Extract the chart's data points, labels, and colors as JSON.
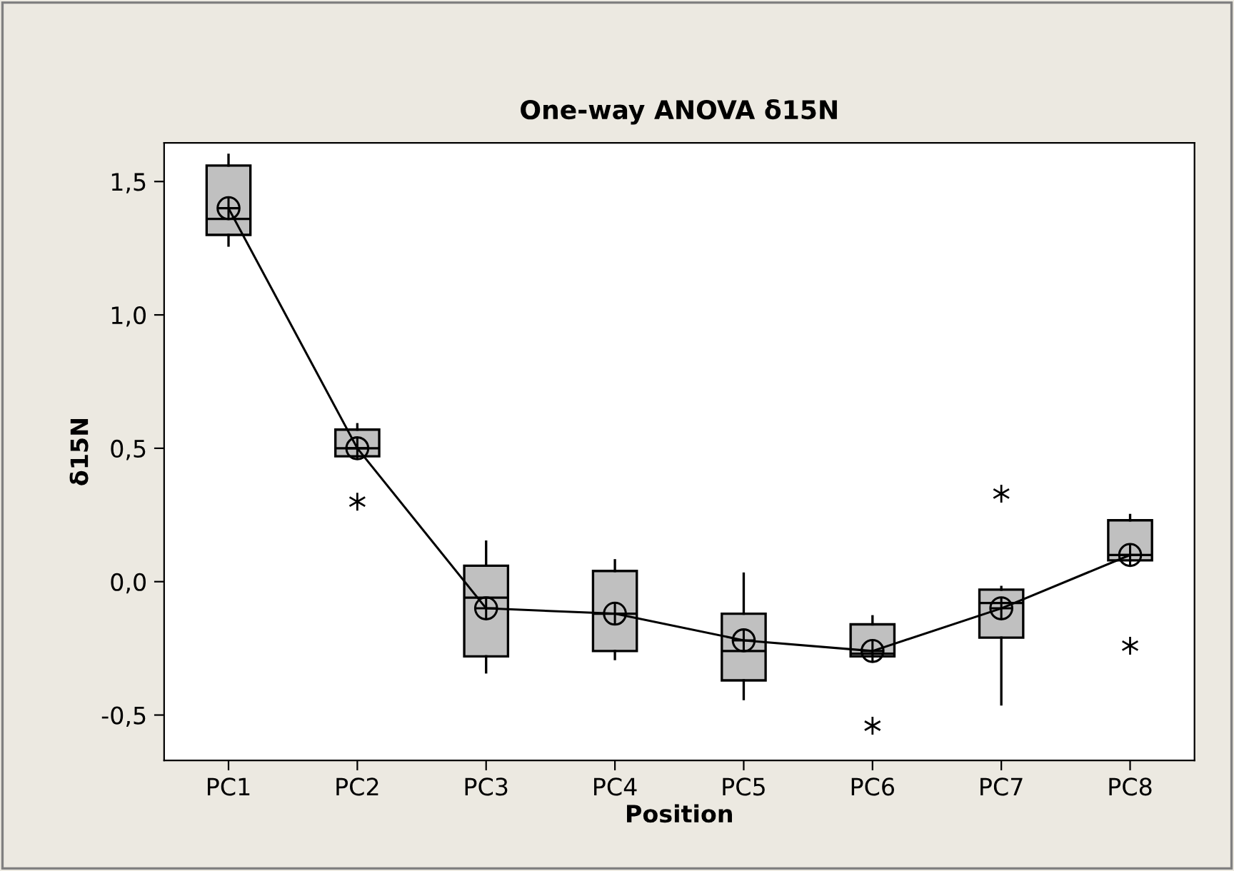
{
  "chart_data": {
    "type": "box",
    "title": "One-way ANOVA δ15N",
    "xlabel": "Position",
    "ylabel": "δ15N",
    "categories": [
      "PC1",
      "PC2",
      "PC3",
      "PC4",
      "PC5",
      "PC6",
      "PC7",
      "PC8"
    ],
    "color": "#c0c0c0",
    "boxes": [
      {
        "low": 1.26,
        "q1": 1.3,
        "median": 1.36,
        "q3": 1.56,
        "high": 1.6,
        "mean": 1.4
      },
      {
        "low": 0.47,
        "q1": 0.47,
        "median": 0.5,
        "q3": 0.57,
        "high": 0.59,
        "mean": 0.5,
        "outliers": [
          0.3
        ]
      },
      {
        "low": -0.34,
        "q1": -0.28,
        "median": -0.06,
        "q3": 0.06,
        "high": 0.15,
        "mean": -0.1
      },
      {
        "low": -0.29,
        "q1": -0.26,
        "median": -0.12,
        "q3": 0.04,
        "high": 0.08,
        "mean": -0.12
      },
      {
        "low": -0.44,
        "q1": -0.37,
        "median": -0.26,
        "q3": -0.12,
        "high": 0.03,
        "mean": -0.22
      },
      {
        "low": -0.28,
        "q1": -0.28,
        "median": -0.27,
        "q3": -0.16,
        "high": -0.13,
        "mean": -0.26,
        "outliers": [
          -0.54
        ]
      },
      {
        "low": -0.46,
        "q1": -0.21,
        "median": -0.08,
        "q3": -0.03,
        "high": -0.02,
        "mean": -0.1,
        "outliers": [
          0.33
        ]
      },
      {
        "low": 0.08,
        "q1": 0.08,
        "median": 0.1,
        "q3": 0.23,
        "high": 0.25,
        "mean": 0.1,
        "outliers": [
          -0.24
        ]
      }
    ],
    "series": [
      {
        "type": "line",
        "color": "#000000",
        "values": [
          1.4,
          0.5,
          -0.1,
          -0.12,
          -0.22,
          -0.26,
          -0.1,
          0.1
        ]
      }
    ],
    "ylim": [
      -0.67,
      1.645
    ],
    "yticks": [
      {
        "value": -0.5,
        "label": "-0,5"
      },
      {
        "value": 0.0,
        "label": "0,0"
      },
      {
        "value": 0.5,
        "label": "0,5"
      },
      {
        "value": 1.0,
        "label": "1,0"
      },
      {
        "value": 1.5,
        "label": "1,5"
      }
    ],
    "grid": false,
    "legend": false
  }
}
